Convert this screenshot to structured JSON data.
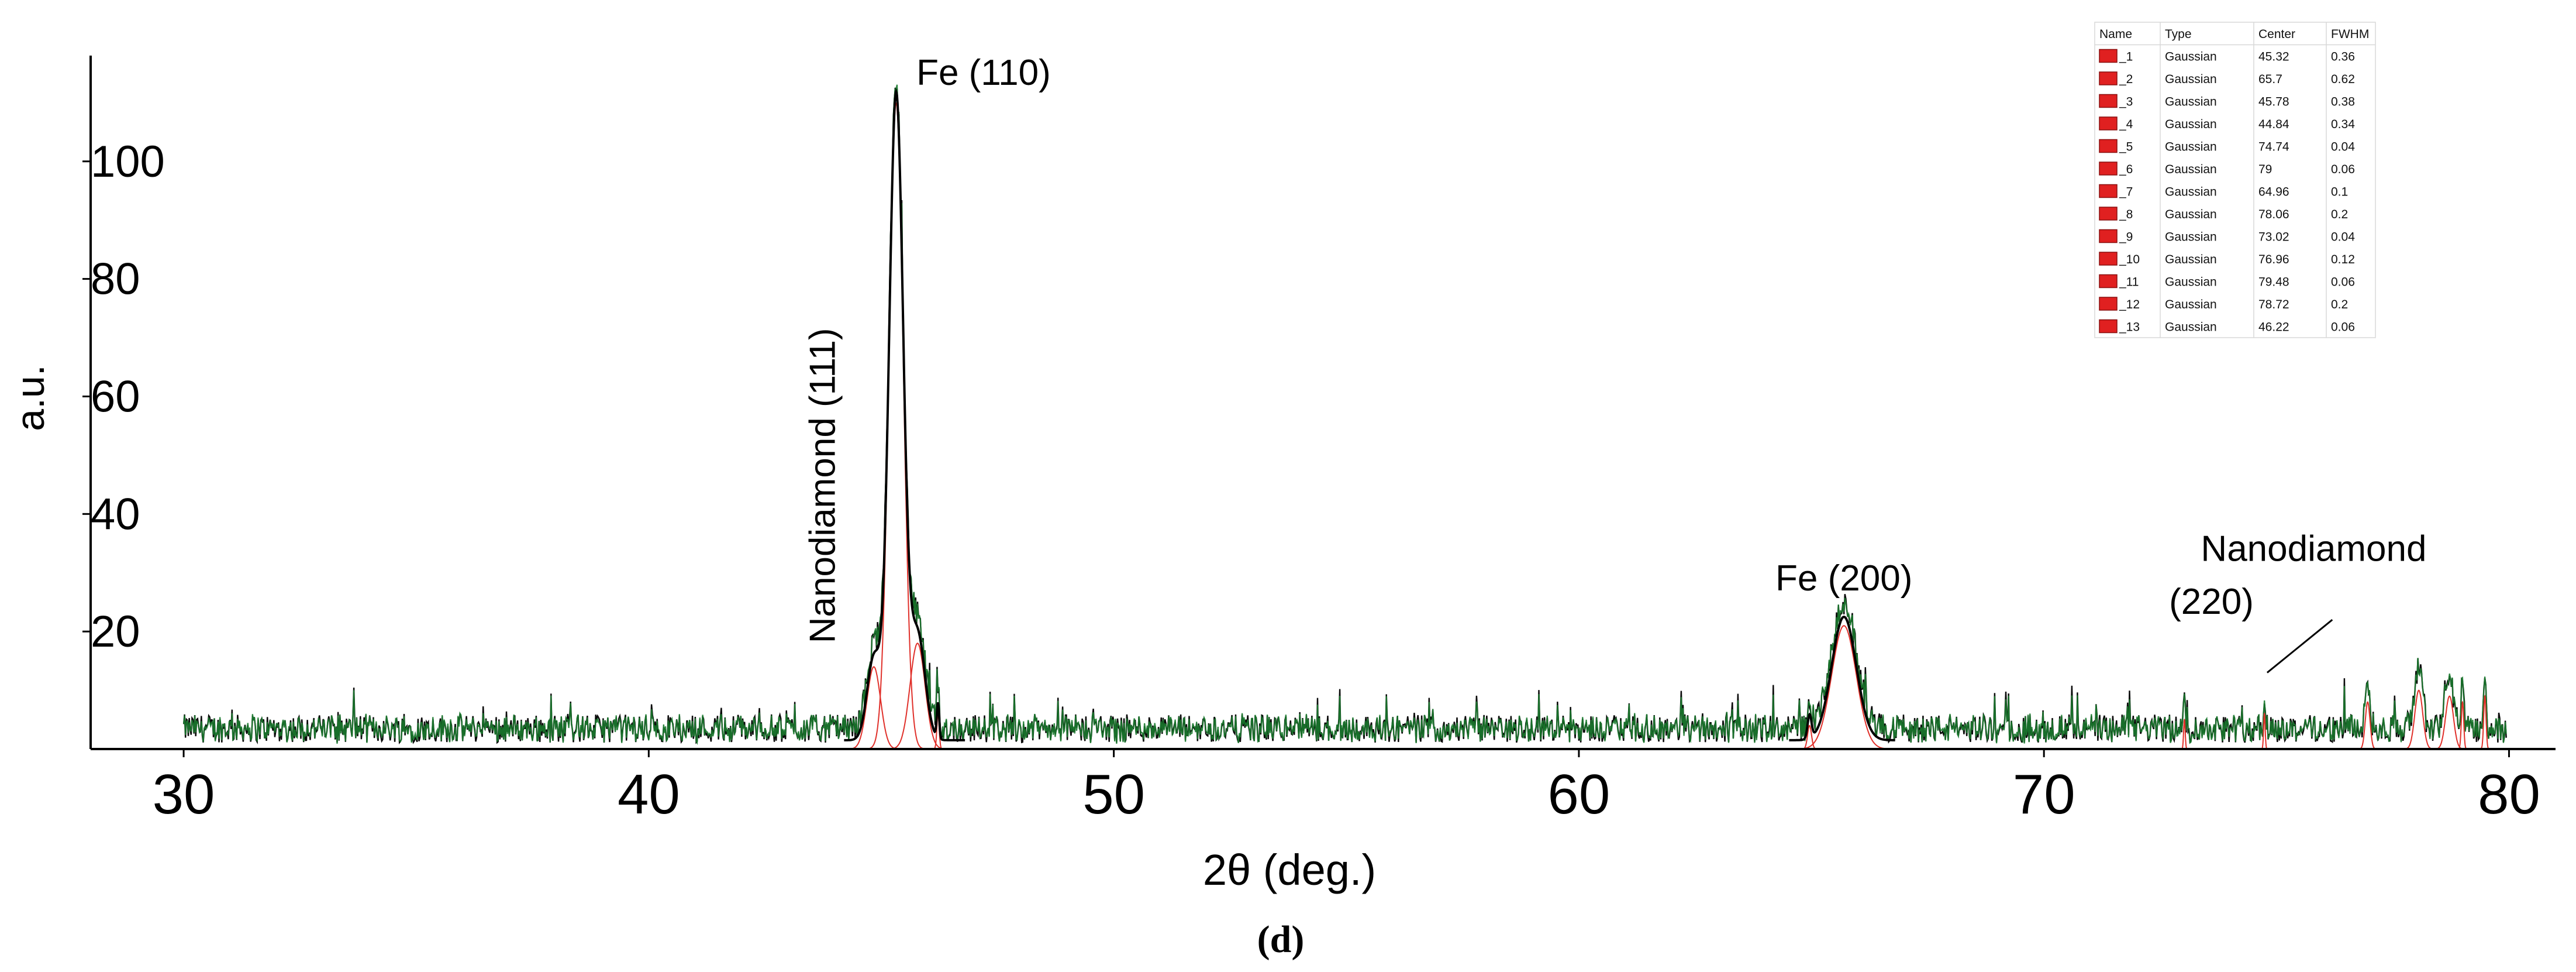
{
  "chart_data": {
    "type": "line",
    "title": "",
    "xlabel": "2θ (deg.)",
    "ylabel": "a.u.",
    "panel_label": "(d)",
    "xlim": [
      28,
      81
    ],
    "ylim": [
      0,
      118
    ],
    "x_ticks": [
      30,
      40,
      50,
      60,
      70,
      80
    ],
    "y_ticks": [
      20,
      40,
      60,
      80,
      100
    ],
    "grid": false,
    "colors": {
      "raw": "#0a0a0a",
      "fit": "#1a7a2e",
      "peaks": "#e0302a",
      "swatch": "#e02020"
    },
    "noise": {
      "x_start": 30.0,
      "x_end": 79.95,
      "step": 0.02,
      "baseline": 3.5,
      "amplitude": 2.4,
      "spike_max": 10
    },
    "series": [
      {
        "name": "_1",
        "type": "Gaussian",
        "center": 45.32,
        "fwhm": 0.36,
        "height": 110
      },
      {
        "name": "_2",
        "type": "Gaussian",
        "center": 65.7,
        "fwhm": 0.62,
        "height": 21
      },
      {
        "name": "_3",
        "type": "Gaussian",
        "center": 45.78,
        "fwhm": 0.38,
        "height": 18
      },
      {
        "name": "_4",
        "type": "Gaussian",
        "center": 44.84,
        "fwhm": 0.34,
        "height": 14
      },
      {
        "name": "_5",
        "type": "Gaussian",
        "center": 74.74,
        "fwhm": 0.04,
        "height": 6
      },
      {
        "name": "_6",
        "type": "Gaussian",
        "center": 79,
        "fwhm": 0.06,
        "height": 8
      },
      {
        "name": "_7",
        "type": "Gaussian",
        "center": 64.96,
        "fwhm": 0.1,
        "height": 4
      },
      {
        "name": "_8",
        "type": "Gaussian",
        "center": 78.06,
        "fwhm": 0.2,
        "height": 10
      },
      {
        "name": "_9",
        "type": "Gaussian",
        "center": 73.02,
        "fwhm": 0.04,
        "height": 5
      },
      {
        "name": "_10",
        "type": "Gaussian",
        "center": 76.96,
        "fwhm": 0.12,
        "height": 8
      },
      {
        "name": "_11",
        "type": "Gaussian",
        "center": 79.48,
        "fwhm": 0.06,
        "height": 9
      },
      {
        "name": "_12",
        "type": "Gaussian",
        "center": 78.72,
        "fwhm": 0.2,
        "height": 9
      },
      {
        "name": "_13",
        "type": "Gaussian",
        "center": 46.22,
        "fwhm": 0.06,
        "height": 6
      }
    ],
    "annotations": [
      {
        "text": "Fe (110)",
        "x": 47.2,
        "y": 113
      },
      {
        "text": "Nanodiamond (111)",
        "x": 44.0,
        "y": 18,
        "rotate": -90
      },
      {
        "text": "Fe (200)",
        "x": 65.7,
        "y": 27
      },
      {
        "text": "Nanodiamond",
        "x": 75.8,
        "y": 32
      },
      {
        "text": "(220)",
        "x": 73.6,
        "y": 23
      }
    ],
    "pointer": {
      "from": [
        76.2,
        22
      ],
      "to": [
        74.8,
        13
      ]
    },
    "legend_table": {
      "headers": [
        "Name",
        "Type",
        "Center",
        "FWHM"
      ],
      "rows": [
        [
          "_1",
          "Gaussian",
          "45.32",
          "0.36"
        ],
        [
          "_2",
          "Gaussian",
          "65.7",
          "0.62"
        ],
        [
          "_3",
          "Gaussian",
          "45.78",
          "0.38"
        ],
        [
          "_4",
          "Gaussian",
          "44.84",
          "0.34"
        ],
        [
          "_5",
          "Gaussian",
          "74.74",
          "0.04"
        ],
        [
          "_6",
          "Gaussian",
          "79",
          "0.06"
        ],
        [
          "_7",
          "Gaussian",
          "64.96",
          "0.1"
        ],
        [
          "_8",
          "Gaussian",
          "78.06",
          "0.2"
        ],
        [
          "_9",
          "Gaussian",
          "73.02",
          "0.04"
        ],
        [
          "_10",
          "Gaussian",
          "76.96",
          "0.12"
        ],
        [
          "_11",
          "Gaussian",
          "79.48",
          "0.06"
        ],
        [
          "_12",
          "Gaussian",
          "78.72",
          "0.2"
        ],
        [
          "_13",
          "Gaussian",
          "46.22",
          "0.06"
        ]
      ]
    }
  }
}
